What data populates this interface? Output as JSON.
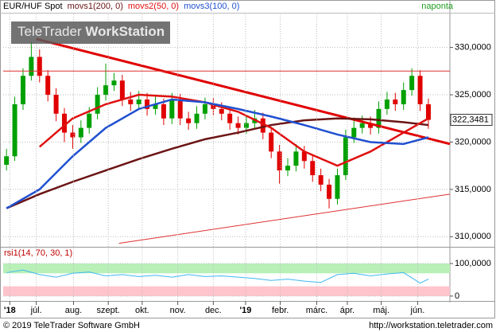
{
  "chart_data": [
    {
      "type": "candlestick",
      "title": "EUR/HUF Spot",
      "period": "naponta",
      "watermark": [
        "TeleTrader",
        "WorkStation"
      ],
      "open": [
        317.6,
        318.5,
        324,
        327,
        329,
        327,
        325,
        323,
        321,
        320.5,
        321.5,
        323,
        325,
        326,
        326.5,
        324.5,
        324,
        324.5,
        323.5,
        324,
        322.5,
        324.5,
        322.5,
        322,
        323,
        324,
        323.5,
        323,
        322,
        321.5,
        322,
        322.5,
        321,
        319,
        317,
        317.5,
        319,
        318,
        316.5,
        315.5,
        314,
        316.5,
        320.5,
        321.5,
        322,
        321.5,
        323.5,
        324.5,
        324,
        325.5,
        327,
        324
      ],
      "high": [
        319.3,
        324.8,
        327.8,
        330.6,
        329.8,
        327.6,
        325.7,
        323.6,
        321.8,
        322.3,
        323.7,
        325.8,
        328.3,
        327.3,
        327.1,
        325.3,
        325.4,
        325.2,
        324.8,
        324.6,
        325.2,
        325.1,
        323.2,
        323.8,
        324.7,
        324.7,
        324.2,
        323.6,
        322.7,
        322.8,
        323.4,
        323.1,
        321.6,
        319.7,
        318.3,
        319.8,
        319.6,
        318.6,
        317.2,
        316.1,
        317.2,
        321.3,
        322.6,
        322.8,
        322.7,
        324.3,
        325.3,
        325.2,
        326.3,
        327.8,
        327.6,
        324.6
      ],
      "low": [
        317,
        318,
        323.4,
        326.5,
        326.3,
        324.3,
        322.2,
        320,
        319.3,
        319.9,
        320.9,
        322.4,
        324.4,
        325.4,
        323.8,
        323.3,
        323.4,
        322.8,
        322.9,
        321.8,
        321.9,
        321.8,
        321.3,
        321.4,
        322.4,
        322.8,
        322.3,
        321.3,
        320.8,
        320.9,
        321.4,
        320.3,
        318.3,
        315.6,
        316.4,
        316.9,
        317.2,
        315.8,
        314.8,
        313,
        313.4,
        316,
        319.9,
        320.9,
        320.8,
        320.9,
        322.9,
        323.3,
        323.4,
        324.9,
        323.3,
        321.4
      ],
      "close": [
        318.5,
        324,
        327,
        329,
        327,
        325,
        323,
        321,
        320.5,
        321.5,
        323,
        325,
        326,
        326.5,
        324.5,
        324,
        324.5,
        323.5,
        324,
        322.5,
        324.5,
        322.5,
        322,
        323,
        324,
        323.5,
        323,
        322,
        321.5,
        322,
        322.5,
        321,
        319,
        317,
        317.5,
        319,
        318,
        316.5,
        315.5,
        314,
        316.5,
        320.5,
        321.5,
        322,
        321.5,
        323.5,
        324.5,
        324,
        325.5,
        327,
        324,
        322.3481
      ],
      "up_color": "#00a000",
      "down_color": "#e00000",
      "series": [
        {
          "name": "movs1(200, 0)",
          "color": "#6b1414",
          "x": [
            0,
            4,
            8,
            12,
            16,
            20,
            24,
            28,
            32,
            36,
            40,
            44,
            48,
            51
          ],
          "values": [
            313,
            314.5,
            315.8,
            317,
            318.2,
            319.3,
            320.3,
            321,
            321.8,
            322.3,
            322.5,
            322.4,
            322.1,
            321.8
          ]
        },
        {
          "name": "movs2(50, 0)",
          "color": "#e01010",
          "x": [
            0,
            4,
            8,
            12,
            16,
            20,
            24,
            28,
            32,
            36,
            40,
            44,
            48,
            51
          ],
          "values": [
            null,
            319.5,
            322.5,
            324,
            325,
            324.8,
            324.2,
            323.2,
            321.5,
            319,
            317.5,
            319,
            321,
            322.5
          ]
        },
        {
          "name": "movs3(100, 0)",
          "color": "#2050d0",
          "x": [
            0,
            4,
            8,
            12,
            16,
            20,
            24,
            28,
            32,
            36,
            40,
            44,
            48,
            51
          ],
          "values": [
            313,
            315,
            318.5,
            321.5,
            323.5,
            324.5,
            324.2,
            323.5,
            322.7,
            321.8,
            320.8,
            320,
            319.8,
            320.5
          ]
        }
      ],
      "lines": [
        {
          "color": "#e00000",
          "x": [
            3.6,
            53.6
          ],
          "values": [
            330.9,
            319.8
          ]
        },
        {
          "color": "#e03030",
          "x": [
            -0.4,
            53.6
          ],
          "values": [
            327.5,
            327.5
          ]
        },
        {
          "color": "#e03030",
          "x": [
            13.6,
            53.6
          ],
          "values": [
            309.3,
            314.5
          ]
        }
      ],
      "last_value": {
        "value": 322.3481,
        "label": "322,3481"
      },
      "xlim": [
        -0.4,
        53.6
      ],
      "ylim": [
        309.1,
        333.5
      ],
      "yticks": [
        {
          "value": 310,
          "label": "310,0000"
        },
        {
          "value": 315,
          "label": "315,0000"
        },
        {
          "value": 320,
          "label": "320,0000"
        },
        {
          "value": 325,
          "label": "325,0000"
        },
        {
          "value": 330,
          "label": "330,0000"
        }
      ],
      "xticks": [
        {
          "value": 0.4,
          "label": "'18"
        },
        {
          "value": 3.6,
          "label": "júl."
        },
        {
          "value": 8.1,
          "label": "aug."
        },
        {
          "value": 12.3,
          "label": "szept."
        },
        {
          "value": 16.4,
          "label": "okt."
        },
        {
          "value": 20.7,
          "label": "nov."
        },
        {
          "value": 25,
          "label": "dec."
        },
        {
          "value": 28.9,
          "label": "'19"
        },
        {
          "value": 33.1,
          "label": "febr."
        },
        {
          "value": 37.5,
          "label": "márc."
        },
        {
          "value": 41.2,
          "label": "ápr."
        },
        {
          "value": 45.3,
          "label": "máj."
        },
        {
          "value": 49.7,
          "label": "jún."
        }
      ],
      "grid": true
    },
    {
      "type": "line",
      "series": [
        {
          "name": "rsi1(14, 70, 30, 1)",
          "color": "#40b8f0",
          "x": [
            0,
            2,
            4,
            6,
            8,
            10,
            12,
            14,
            16,
            18,
            20,
            22,
            24,
            26,
            28,
            30,
            32,
            34,
            36,
            38,
            40,
            42,
            44,
            46,
            48,
            50,
            51
          ],
          "values": [
            72,
            80,
            66,
            58,
            70,
            74,
            62,
            66,
            60,
            64,
            58,
            66,
            60,
            62,
            58,
            54,
            48,
            52,
            46,
            42,
            66,
            70,
            62,
            68,
            72,
            40,
            52
          ]
        }
      ],
      "bands": [
        {
          "from": 70,
          "to": 100,
          "color": "#b8f0b8"
        },
        {
          "from": 0,
          "to": 30,
          "color": "#ffc4cc"
        }
      ],
      "xlim": [
        -0.4,
        53.6
      ],
      "ylim": [
        -15,
        122
      ],
      "yticks": [
        {
          "value": 100,
          "label": "100,0000"
        },
        0
      ],
      "grid": true
    }
  ],
  "footer": {
    "left": "© 2019 TeleTrader Software GmbH",
    "right": "http://workstation.teletrader.com"
  }
}
